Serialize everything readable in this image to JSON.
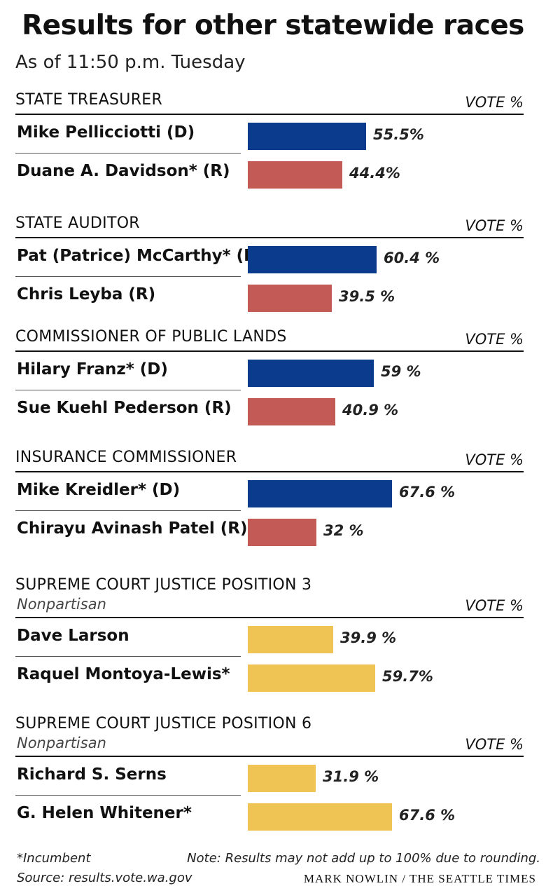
{
  "title": "Results for other statewide races",
  "subtitle": "As of 11:50 p.m. Tuesday",
  "vote_header": "VOTE %",
  "colors": {
    "D": "#0b3b8c",
    "R": "#c45a56",
    "N": "#f0c454"
  },
  "chart_data": {
    "type": "bar",
    "orientation": "horizontal",
    "unit": "%",
    "xlim": [
      0,
      100
    ],
    "races": [
      {
        "title": "STATE TREASURER",
        "subtitle": "",
        "candidates": [
          {
            "name": "Mike Pellicciotti (D)",
            "party": "D",
            "value": 55.5,
            "label": "55.5%"
          },
          {
            "name": "Duane A. Davidson* (R)",
            "party": "R",
            "value": 44.4,
            "label": "44.4%"
          }
        ]
      },
      {
        "title": "STATE AUDITOR",
        "subtitle": "",
        "candidates": [
          {
            "name": "Pat (Patrice) McCarthy* (D)",
            "party": "D",
            "value": 60.4,
            "label": "60.4 %"
          },
          {
            "name": "Chris Leyba (R)",
            "party": "R",
            "value": 39.5,
            "label": "39.5  %"
          }
        ]
      },
      {
        "title": "COMMISSIONER OF PUBLIC LANDS",
        "subtitle": "",
        "candidates": [
          {
            "name": "Hilary Franz* (D)",
            "party": "D",
            "value": 59,
            "label": "59 %"
          },
          {
            "name": "Sue Kuehl Pederson (R)",
            "party": "R",
            "value": 40.9,
            "label": "40.9 %"
          }
        ]
      },
      {
        "title": "INSURANCE COMMISSIONER",
        "subtitle": "",
        "candidates": [
          {
            "name": "Mike Kreidler* (D)",
            "party": "D",
            "value": 67.6,
            "label": "67.6 %"
          },
          {
            "name": "Chirayu Avinash Patel (R)",
            "party": "R",
            "value": 32,
            "label": "32 %"
          }
        ]
      },
      {
        "title": "SUPREME COURT JUSTICE POSITION 3",
        "subtitle": "Nonpartisan",
        "candidates": [
          {
            "name": "Dave Larson",
            "party": "N",
            "value": 39.9,
            "label": "39.9 %"
          },
          {
            "name": "Raquel Montoya-Lewis*",
            "party": "N",
            "value": 59.7,
            "label": "59.7%"
          }
        ]
      },
      {
        "title": "SUPREME COURT JUSTICE POSITION 6",
        "subtitle": "Nonpartisan",
        "candidates": [
          {
            "name": "Richard S. Serns",
            "party": "N",
            "value": 31.9,
            "label": "31.9 %"
          },
          {
            "name": "G. Helen Whitener*",
            "party": "N",
            "value": 67.6,
            "label": "67.6 %"
          }
        ]
      }
    ]
  },
  "footer": {
    "incumbent_note": "*Incumbent",
    "source": "Source: results.vote.wa.gov",
    "rounding_note": "Note: Results may not add up to 100% due to rounding.",
    "credit": "MARK NOWLIN / THE SEATTLE TIMES"
  }
}
